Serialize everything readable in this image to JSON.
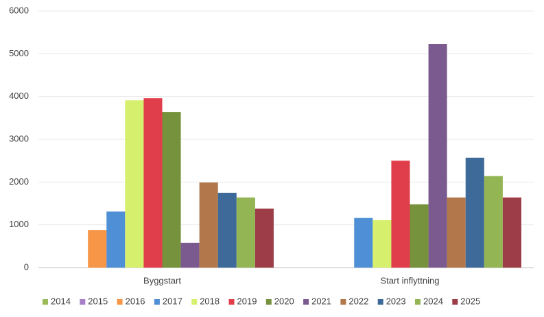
{
  "chart_data": {
    "type": "bar",
    "categories": [
      "Byggstart",
      "Start inflyttning"
    ],
    "series": [
      {
        "name": "2014",
        "color": "#9bbb59",
        "values": [
          0,
          0
        ]
      },
      {
        "name": "2015",
        "color": "#a77fc9",
        "values": [
          0,
          0
        ]
      },
      {
        "name": "2016",
        "color": "#f79646",
        "values": [
          880,
          0
        ]
      },
      {
        "name": "2017",
        "color": "#4f8fd6",
        "values": [
          1310,
          1160
        ]
      },
      {
        "name": "2018",
        "color": "#d6ef6c",
        "values": [
          3910,
          1110
        ]
      },
      {
        "name": "2019",
        "color": "#df3e4a",
        "values": [
          3960,
          2500
        ]
      },
      {
        "name": "2020",
        "color": "#77923c",
        "values": [
          3640,
          1480
        ]
      },
      {
        "name": "2021",
        "color": "#7b5a8f",
        "values": [
          580,
          5230
        ]
      },
      {
        "name": "2022",
        "color": "#b2774a",
        "values": [
          1990,
          1640
        ]
      },
      {
        "name": "2023",
        "color": "#3d6a99",
        "values": [
          1750,
          2570
        ]
      },
      {
        "name": "2024",
        "color": "#93b553",
        "values": [
          1640,
          2140
        ]
      },
      {
        "name": "2025",
        "color": "#9c3d48",
        "values": [
          1380,
          1640
        ]
      }
    ],
    "ylim": [
      0,
      6000
    ],
    "yticks": [
      0,
      1000,
      2000,
      3000,
      4000,
      5000,
      6000
    ],
    "grid": true,
    "legend": "bottom"
  }
}
